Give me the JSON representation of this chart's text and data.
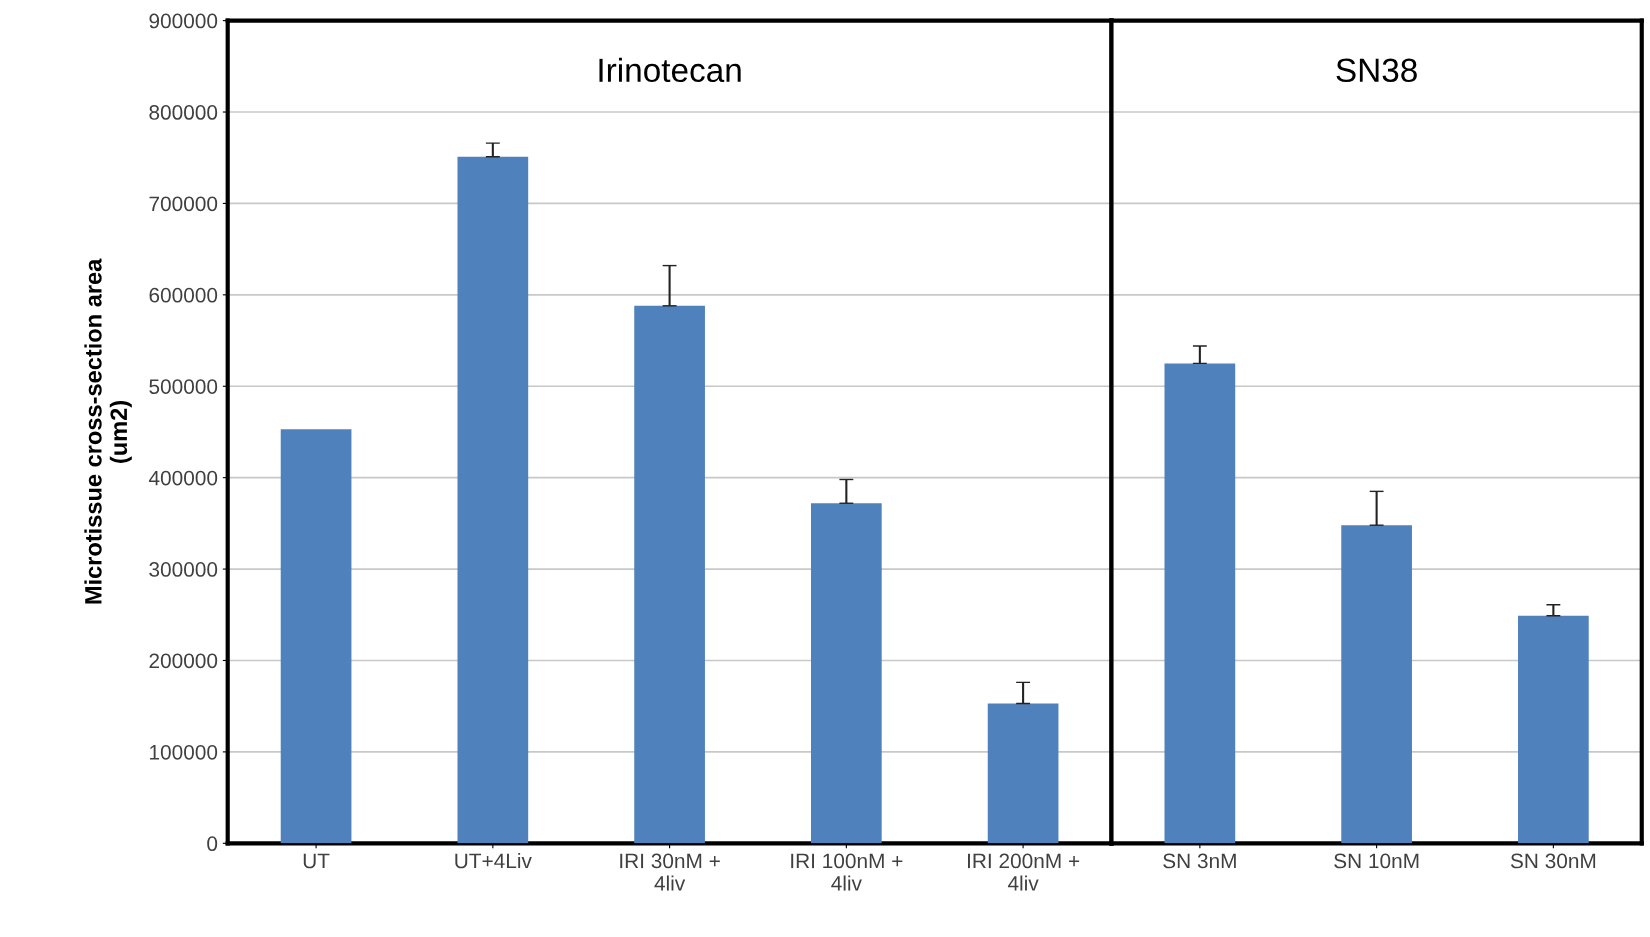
{
  "chart_data": [
    {
      "type": "bar",
      "title": "Irinotecan",
      "ylabel": "Microtissue cross-section area\n(um2)",
      "categories": [
        "UT",
        "UT+4Liv",
        "IRI 30nM +\n4liv",
        "IRI 100nM +\n4liv",
        "IRI 200nM +\n4liv"
      ],
      "values": [
        453000,
        751000,
        588000,
        372000,
        153000
      ],
      "errors": [
        null,
        [
          751000,
          766000
        ],
        [
          588000,
          632000
        ],
        [
          372000,
          398000
        ],
        [
          153000,
          176000
        ]
      ],
      "color": "#4f81bd",
      "ylim": [
        0,
        900000
      ],
      "yticks": [
        0,
        100000,
        200000,
        300000,
        400000,
        500000,
        600000,
        700000,
        800000,
        900000
      ],
      "grid": "y"
    },
    {
      "type": "bar",
      "title": "SN38",
      "categories": [
        "SN 3nM",
        "SN 10nM",
        "SN 30nM"
      ],
      "values": [
        525000,
        348000,
        249000
      ],
      "errors": [
        [
          525000,
          544000
        ],
        [
          348000,
          385000
        ],
        [
          249000,
          261000
        ]
      ],
      "color": "#4f81bd",
      "ylim": [
        0,
        900000
      ],
      "yticks": [
        0,
        100000,
        200000,
        300000,
        400000,
        500000,
        600000,
        700000,
        800000,
        900000
      ],
      "grid": "y",
      "tick_labels": "x"
    }
  ]
}
